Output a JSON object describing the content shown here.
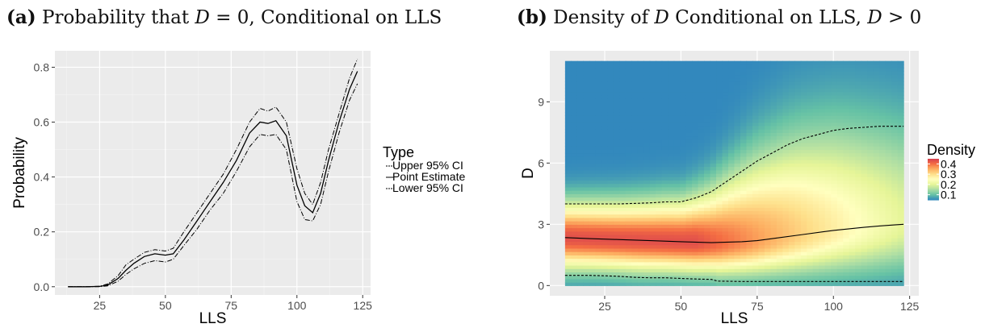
{
  "captions": {
    "a": {
      "tag": "(a)",
      "text": "Probability that D = 0, Conditional on LLS"
    },
    "b": {
      "tag": "(b)",
      "text": "Density of D Conditional on LLS, D > 0"
    }
  },
  "chart_data": [
    {
      "type": "line",
      "panel": "a",
      "title": "Probability that D = 0, Conditional on LLS",
      "xlabel": "LLS",
      "ylabel": "Probability",
      "xlim": [
        8,
        128
      ],
      "ylim": [
        -0.03,
        0.86
      ],
      "xticks": [
        25,
        50,
        75,
        100,
        125
      ],
      "yticks": [
        0.0,
        0.2,
        0.4,
        0.6,
        0.8
      ],
      "ytick_labels": [
        "0.0",
        "0.2",
        "0.4",
        "0.6",
        "0.8"
      ],
      "grid": true,
      "background": "#ebebeb",
      "legend": {
        "title": "Type",
        "placement": "right"
      },
      "x": [
        13,
        20,
        25,
        28,
        32,
        35,
        38,
        42,
        46,
        50,
        53,
        57,
        62,
        67,
        72,
        77,
        82,
        86,
        89,
        92,
        96,
        100,
        103,
        106,
        109,
        112,
        116,
        120,
        123
      ],
      "series": [
        {
          "name": "Upper 95% CI",
          "dash": "6,2,1,2",
          "values": [
            0.0,
            0.0,
            0.002,
            0.01,
            0.04,
            0.08,
            0.1,
            0.125,
            0.135,
            0.13,
            0.14,
            0.2,
            0.27,
            0.34,
            0.41,
            0.5,
            0.6,
            0.65,
            0.64,
            0.655,
            0.6,
            0.43,
            0.34,
            0.3,
            0.38,
            0.5,
            0.63,
            0.76,
            0.83
          ]
        },
        {
          "name": "Point Estimate",
          "dash": "",
          "values": [
            0.0,
            0.0,
            0.001,
            0.006,
            0.03,
            0.06,
            0.085,
            0.11,
            0.12,
            0.115,
            0.12,
            0.17,
            0.24,
            0.31,
            0.38,
            0.46,
            0.56,
            0.6,
            0.595,
            0.605,
            0.55,
            0.37,
            0.295,
            0.27,
            0.34,
            0.46,
            0.6,
            0.72,
            0.785
          ]
        },
        {
          "name": "Lower 95% CI",
          "dash": "6,2,1,2",
          "values": [
            0.0,
            0.0,
            0.0,
            0.003,
            0.02,
            0.045,
            0.065,
            0.085,
            0.095,
            0.09,
            0.1,
            0.15,
            0.21,
            0.28,
            0.34,
            0.42,
            0.51,
            0.555,
            0.55,
            0.555,
            0.5,
            0.31,
            0.245,
            0.24,
            0.3,
            0.42,
            0.56,
            0.68,
            0.74
          ]
        }
      ]
    },
    {
      "type": "heatmap",
      "panel": "b",
      "title": "Density of D Conditional on LLS, D > 0",
      "xlabel": "LLS",
      "ylabel": "D",
      "xlim": [
        7,
        128
      ],
      "ylim": [
        -0.5,
        11.5
      ],
      "xticks": [
        25,
        50,
        75,
        100,
        125
      ],
      "yticks": [
        0,
        3,
        6,
        9
      ],
      "heat_extent": {
        "x": [
          12,
          123
        ],
        "y": [
          0,
          11
        ]
      },
      "grid": true,
      "background": "#ebebeb",
      "legend": {
        "title": "Density",
        "placement": "right",
        "labels": [
          "0.4",
          "0.3",
          "0.2",
          "0.1"
        ],
        "range": [
          0.05,
          0.45
        ]
      },
      "colors": [
        "#3288bd",
        "#66c2a5",
        "#abdda4",
        "#e6f598",
        "#ffffbf",
        "#fee08b",
        "#fdae61",
        "#f46d43",
        "#d53e4f"
      ],
      "lines": [
        {
          "name": "Upper",
          "dash": "3,2",
          "x": [
            12,
            20,
            30,
            40,
            45,
            50,
            55,
            60,
            65,
            70,
            75,
            80,
            85,
            90,
            95,
            100,
            105,
            110,
            115,
            120,
            123
          ],
          "y": [
            4.0,
            4.0,
            4.0,
            4.05,
            4.1,
            4.1,
            4.3,
            4.6,
            5.1,
            5.6,
            6.1,
            6.5,
            6.9,
            7.2,
            7.4,
            7.6,
            7.7,
            7.75,
            7.8,
            7.8,
            7.8
          ]
        },
        {
          "name": "Median",
          "dash": "",
          "x": [
            12,
            20,
            30,
            40,
            50,
            60,
            70,
            75,
            80,
            90,
            100,
            110,
            115,
            120,
            123
          ],
          "y": [
            2.35,
            2.3,
            2.25,
            2.2,
            2.15,
            2.1,
            2.15,
            2.2,
            2.3,
            2.5,
            2.7,
            2.85,
            2.92,
            2.97,
            3.0
          ]
        },
        {
          "name": "Lower",
          "dash": "3,2",
          "x": [
            12,
            20,
            25,
            30,
            35,
            40,
            45,
            50,
            55,
            60,
            62,
            70,
            80,
            90,
            100,
            110,
            123
          ],
          "y": [
            0.5,
            0.5,
            0.48,
            0.45,
            0.4,
            0.38,
            0.38,
            0.35,
            0.32,
            0.3,
            0.22,
            0.2,
            0.2,
            0.2,
            0.2,
            0.2,
            0.2
          ]
        }
      ]
    }
  ]
}
